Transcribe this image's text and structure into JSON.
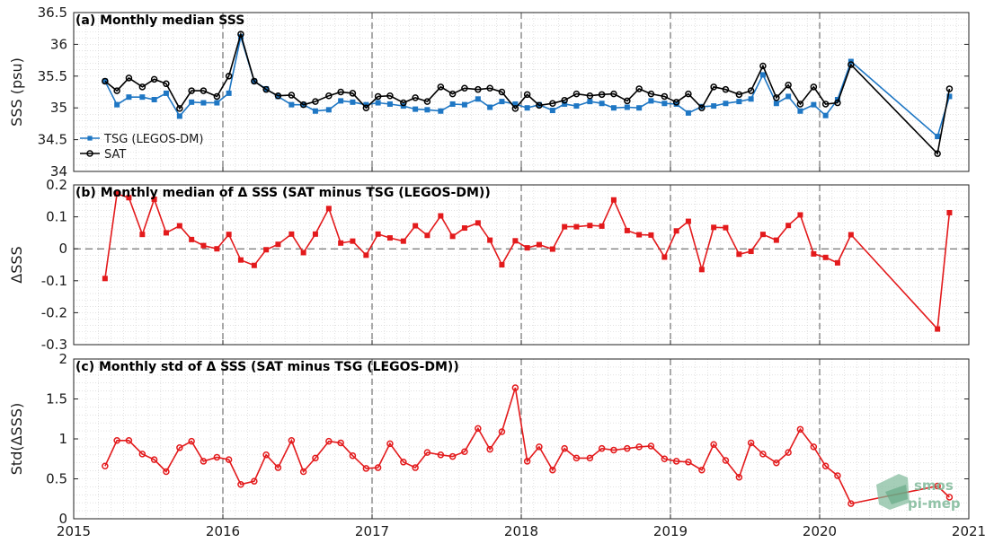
{
  "chart_data": [
    {
      "type": "line",
      "title": "(a) Monthly median SSS",
      "ylabel": "SSS (psu)",
      "xlim": [
        2015,
        2021
      ],
      "ylim": [
        34,
        36.5
      ],
      "yticks": [
        "34",
        "34.5",
        "35",
        "35.5",
        "36",
        "36.5"
      ],
      "xticks": [
        "2015",
        "2016",
        "2017",
        "2018",
        "2019",
        "2020",
        "2021"
      ],
      "grid": true,
      "legend": "left",
      "series": [
        {
          "name": "TSG (LEGOS-DM)",
          "color": "#1f77c4",
          "marker": "square",
          "x": [
            2015.21,
            2015.29,
            2015.37,
            2015.46,
            2015.54,
            2015.62,
            2015.71,
            2015.79,
            2015.87,
            2015.96,
            2016.04,
            2016.12,
            2016.21,
            2016.29,
            2016.37,
            2016.46,
            2016.54,
            2016.62,
            2016.71,
            2016.79,
            2016.87,
            2016.96,
            2017.04,
            2017.12,
            2017.21,
            2017.29,
            2017.37,
            2017.46,
            2017.54,
            2017.62,
            2017.71,
            2017.79,
            2017.87,
            2017.96,
            2018.04,
            2018.12,
            2018.21,
            2018.29,
            2018.37,
            2018.46,
            2018.54,
            2018.62,
            2018.71,
            2018.79,
            2018.87,
            2018.96,
            2019.04,
            2019.12,
            2019.21,
            2019.29,
            2019.37,
            2019.46,
            2019.54,
            2019.62,
            2019.71,
            2019.79,
            2019.87,
            2019.96,
            2020.04,
            2020.12,
            2020.21,
            2020.79,
            2020.87
          ],
          "y": [
            35.42,
            35.05,
            35.17,
            35.17,
            35.13,
            35.23,
            34.87,
            35.09,
            35.08,
            35.08,
            35.23,
            36.12,
            35.42,
            35.3,
            35.18,
            35.05,
            35.05,
            34.95,
            34.97,
            35.11,
            35.09,
            35.05,
            35.08,
            35.06,
            35.03,
            34.98,
            34.97,
            34.95,
            35.06,
            35.05,
            35.14,
            35.01,
            35.1,
            35.06,
            35.0,
            35.05,
            34.96,
            35.06,
            35.03,
            35.1,
            35.07,
            35.0,
            35.01,
            35.0,
            35.11,
            35.07,
            35.06,
            34.92,
            35.02,
            35.03,
            35.07,
            35.1,
            35.14,
            35.52,
            35.07,
            35.18,
            34.95,
            35.05,
            34.88,
            35.13,
            35.73,
            34.55,
            35.18
          ]
        },
        {
          "name": "SAT",
          "color": "#000000",
          "marker": "circle",
          "x": [
            2015.21,
            2015.29,
            2015.37,
            2015.46,
            2015.54,
            2015.62,
            2015.71,
            2015.79,
            2015.87,
            2015.96,
            2016.04,
            2016.12,
            2016.21,
            2016.29,
            2016.37,
            2016.46,
            2016.54,
            2016.62,
            2016.71,
            2016.79,
            2016.87,
            2016.96,
            2017.04,
            2017.12,
            2017.21,
            2017.29,
            2017.37,
            2017.46,
            2017.54,
            2017.62,
            2017.71,
            2017.79,
            2017.87,
            2017.96,
            2018.04,
            2018.12,
            2018.21,
            2018.29,
            2018.37,
            2018.46,
            2018.54,
            2018.62,
            2018.71,
            2018.79,
            2018.87,
            2018.96,
            2019.04,
            2019.12,
            2019.21,
            2019.29,
            2019.37,
            2019.46,
            2019.54,
            2019.62,
            2019.71,
            2019.79,
            2019.87,
            2019.96,
            2020.04,
            2020.12,
            2020.21,
            2020.79,
            2020.87
          ],
          "y": [
            35.42,
            35.27,
            35.47,
            35.33,
            35.45,
            35.38,
            34.99,
            35.27,
            35.27,
            35.18,
            35.5,
            36.16,
            35.42,
            35.29,
            35.19,
            35.2,
            35.05,
            35.1,
            35.19,
            35.25,
            35.23,
            35.0,
            35.18,
            35.19,
            35.08,
            35.16,
            35.1,
            35.33,
            35.22,
            35.31,
            35.29,
            35.31,
            35.25,
            34.99,
            35.21,
            35.04,
            35.07,
            35.12,
            35.22,
            35.19,
            35.21,
            35.22,
            35.11,
            35.3,
            35.22,
            35.18,
            35.09,
            35.22,
            35.0,
            35.33,
            35.29,
            35.21,
            35.27,
            35.66,
            35.16,
            35.36,
            35.06,
            35.33,
            35.06,
            35.08,
            35.68,
            34.28,
            35.3
          ]
        }
      ]
    },
    {
      "type": "line",
      "title": "(b) Monthly median of Δ SSS (SAT minus TSG (LEGOS-DM))",
      "ylabel": "ΔSSS",
      "xlim": [
        2015,
        2021
      ],
      "ylim": [
        -0.3,
        0.2
      ],
      "yticks": [
        "-0.3",
        "-0.2",
        "-0.1",
        "0",
        "0.1",
        "0.2"
      ],
      "xticks": [
        "2015",
        "2016",
        "2017",
        "2018",
        "2019",
        "2020",
        "2021"
      ],
      "grid": true,
      "zero_line": true,
      "series": [
        {
          "color": "#e31a1c",
          "marker": "square",
          "x": [
            2015.21,
            2015.29,
            2015.37,
            2015.46,
            2015.54,
            2015.62,
            2015.71,
            2015.79,
            2015.87,
            2015.96,
            2016.04,
            2016.12,
            2016.21,
            2016.29,
            2016.37,
            2016.46,
            2016.54,
            2016.62,
            2016.71,
            2016.79,
            2016.87,
            2016.96,
            2017.04,
            2017.12,
            2017.21,
            2017.29,
            2017.37,
            2017.46,
            2017.54,
            2017.62,
            2017.71,
            2017.79,
            2017.87,
            2017.96,
            2018.04,
            2018.12,
            2018.21,
            2018.29,
            2018.37,
            2018.46,
            2018.54,
            2018.62,
            2018.71,
            2018.79,
            2018.87,
            2018.96,
            2019.04,
            2019.12,
            2019.21,
            2019.29,
            2019.37,
            2019.46,
            2019.54,
            2019.62,
            2019.71,
            2019.79,
            2019.87,
            2019.96,
            2020.04,
            2020.12,
            2020.21,
            2020.79,
            2020.87
          ],
          "y": [
            -0.093,
            0.172,
            0.16,
            0.045,
            0.155,
            0.05,
            0.072,
            0.029,
            0.01,
            0.0,
            0.045,
            -0.035,
            -0.052,
            -0.003,
            0.014,
            0.046,
            -0.012,
            0.046,
            0.126,
            0.018,
            0.024,
            -0.02,
            0.046,
            0.034,
            0.024,
            0.072,
            0.042,
            0.103,
            0.039,
            0.065,
            0.081,
            0.027,
            -0.05,
            0.025,
            0.003,
            0.013,
            -0.001,
            0.069,
            0.069,
            0.073,
            0.071,
            0.153,
            0.057,
            0.044,
            0.043,
            -0.026,
            0.056,
            0.086,
            -0.065,
            0.067,
            0.066,
            -0.017,
            -0.008,
            0.045,
            0.027,
            0.073,
            0.106,
            -0.016,
            -0.027,
            -0.044,
            0.044,
            -0.251,
            0.113
          ]
        }
      ]
    },
    {
      "type": "line",
      "title": "(c) Monthly std of Δ SSS (SAT minus TSG (LEGOS-DM))",
      "ylabel": "Std(ΔSSS)",
      "xlim": [
        2015,
        2021
      ],
      "ylim": [
        0,
        2
      ],
      "yticks": [
        "0",
        "0.5",
        "1",
        "1.5",
        "2"
      ],
      "xticks": [
        "2015",
        "2016",
        "2017",
        "2018",
        "2019",
        "2020",
        "2021"
      ],
      "grid": true,
      "series": [
        {
          "color": "#e31a1c",
          "marker": "circle",
          "x": [
            2015.21,
            2015.29,
            2015.37,
            2015.46,
            2015.54,
            2015.62,
            2015.71,
            2015.79,
            2015.87,
            2015.96,
            2016.04,
            2016.12,
            2016.21,
            2016.29,
            2016.37,
            2016.46,
            2016.54,
            2016.62,
            2016.71,
            2016.79,
            2016.87,
            2016.96,
            2017.04,
            2017.12,
            2017.21,
            2017.29,
            2017.37,
            2017.46,
            2017.54,
            2017.62,
            2017.71,
            2017.79,
            2017.87,
            2017.96,
            2018.04,
            2018.12,
            2018.21,
            2018.29,
            2018.37,
            2018.46,
            2018.54,
            2018.62,
            2018.71,
            2018.79,
            2018.87,
            2018.96,
            2019.04,
            2019.12,
            2019.21,
            2019.29,
            2019.37,
            2019.46,
            2019.54,
            2019.62,
            2019.71,
            2019.79,
            2019.87,
            2019.96,
            2020.04,
            2020.12,
            2020.21,
            2020.79,
            2020.87
          ],
          "y": [
            0.66,
            0.98,
            0.98,
            0.81,
            0.74,
            0.59,
            0.89,
            0.97,
            0.72,
            0.77,
            0.74,
            0.43,
            0.47,
            0.8,
            0.64,
            0.98,
            0.59,
            0.76,
            0.97,
            0.95,
            0.79,
            0.63,
            0.64,
            0.94,
            0.71,
            0.64,
            0.83,
            0.8,
            0.78,
            0.84,
            1.13,
            0.87,
            1.09,
            1.64,
            0.72,
            0.9,
            0.61,
            0.88,
            0.76,
            0.76,
            0.88,
            0.86,
            0.88,
            0.9,
            0.91,
            0.75,
            0.72,
            0.71,
            0.61,
            0.93,
            0.73,
            0.52,
            0.95,
            0.81,
            0.7,
            0.83,
            1.12,
            0.9,
            0.66,
            0.54,
            0.19,
            0.41,
            0.27
          ]
        }
      ]
    }
  ],
  "watermark": {
    "line1": "smos",
    "line2": "pi-mep",
    "color": "#7fb99a"
  }
}
